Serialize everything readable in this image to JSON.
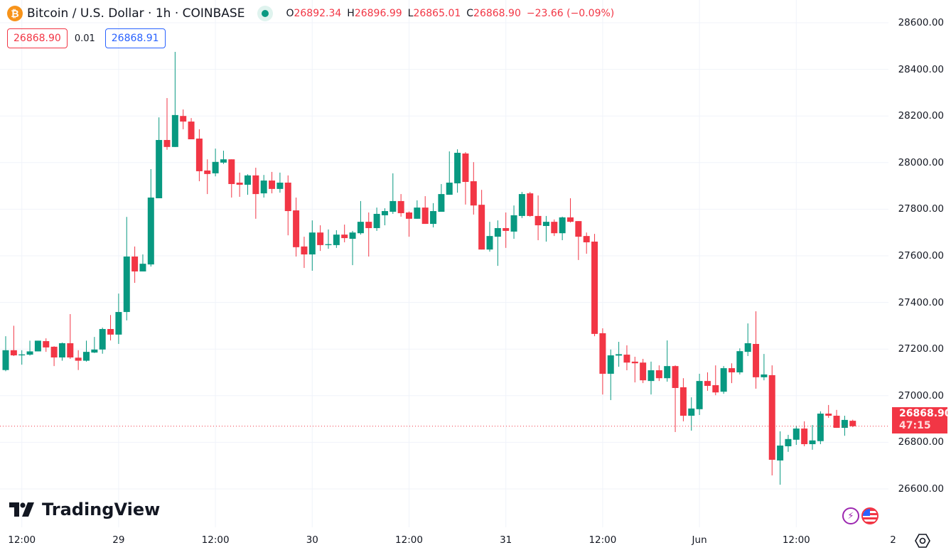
{
  "header": {
    "symbol_title": "Bitcoin / U.S. Dollar · 1h · COINBASE",
    "icon": "bitcoin-icon",
    "open_label": "O",
    "open": "26892.34",
    "high_label": "H",
    "high": "26896.99",
    "low_label": "L",
    "low": "26865.01",
    "close_label": "C",
    "close": "26868.90",
    "change": "−23.66 (−0.09%)"
  },
  "quote": {
    "sell": "26868.90",
    "spread": "0.01",
    "buy": "26868.91"
  },
  "last_price": {
    "price": "26868.90",
    "countdown": "47:15"
  },
  "branding": {
    "logo_text": "TradingView"
  },
  "colors": {
    "up": "#089981",
    "down": "#f23645",
    "grid": "#f0f3fa",
    "buy": "#2962ff"
  },
  "chart_data": {
    "type": "candlestick",
    "title": "Bitcoin / U.S. Dollar · 1h · COINBASE",
    "interval": "1h",
    "ylim": [
      26520,
      28700
    ],
    "grid": true,
    "y_ticks": [
      "28600.00",
      "28400.00",
      "28200.00",
      "28000.00",
      "27800.00",
      "27600.00",
      "27400.00",
      "27200.00",
      "27000.00",
      "26800.00",
      "26600.00"
    ],
    "x_ticks": [
      "12:00",
      "29",
      "12:00",
      "30",
      "12:00",
      "31",
      "12:00",
      "Jun",
      "12:00",
      "2"
    ],
    "ohlc_format": [
      "open",
      "high",
      "low",
      "close"
    ],
    "candles": [
      [
        27110,
        27255,
        27105,
        27195
      ],
      [
        27195,
        27300,
        27170,
        27173
      ],
      [
        27173,
        27195,
        27133,
        27177
      ],
      [
        27176,
        27236,
        27172,
        27190
      ],
      [
        27190,
        27236,
        27190,
        27236
      ],
      [
        27234,
        27246,
        27188,
        27207
      ],
      [
        27210,
        27212,
        27127,
        27164
      ],
      [
        27164,
        27228,
        27150,
        27225
      ],
      [
        27225,
        27350,
        27158,
        27164
      ],
      [
        27163,
        27195,
        27110,
        27150
      ],
      [
        27150,
        27236,
        27146,
        27188
      ],
      [
        27185,
        27252,
        27183,
        27198
      ],
      [
        27198,
        27292,
        27180,
        27286
      ],
      [
        27286,
        27346,
        27237,
        27262
      ],
      [
        27262,
        27438,
        27222,
        27359
      ],
      [
        27359,
        27767,
        27323,
        27597
      ],
      [
        27597,
        27640,
        27484,
        27533
      ],
      [
        27533,
        27606,
        27533,
        27566
      ],
      [
        27563,
        27972,
        27554,
        27850
      ],
      [
        27847,
        28194,
        27847,
        28097
      ],
      [
        28097,
        28277,
        28055,
        28067
      ],
      [
        28067,
        28475,
        28067,
        28204
      ],
      [
        28200,
        28228,
        28143,
        28176
      ],
      [
        28176,
        28191,
        28100,
        28100
      ],
      [
        28103,
        28143,
        27920,
        27963
      ],
      [
        27966,
        28014,
        27865,
        27951
      ],
      [
        27954,
        28060,
        27941,
        28003
      ],
      [
        28000,
        28051,
        27994,
        28014
      ],
      [
        28014,
        28014,
        27850,
        27908
      ],
      [
        27914,
        27957,
        27853,
        27905
      ],
      [
        27905,
        27950,
        27862,
        27945
      ],
      [
        27945,
        27978,
        27759,
        27865
      ],
      [
        27868,
        27947,
        27850,
        27923
      ],
      [
        27923,
        27960,
        27868,
        27887
      ],
      [
        27887,
        27957,
        27871,
        27914
      ],
      [
        27914,
        27945,
        27688,
        27792
      ],
      [
        27795,
        27850,
        27597,
        27637
      ],
      [
        27640,
        27682,
        27548,
        27606
      ],
      [
        27606,
        27752,
        27536,
        27700
      ],
      [
        27700,
        27731,
        27621,
        27646
      ],
      [
        27646,
        27713,
        27630,
        27650
      ],
      [
        27646,
        27710,
        27634,
        27691
      ],
      [
        27691,
        27734,
        27658,
        27676
      ],
      [
        27673,
        27707,
        27560,
        27700
      ],
      [
        27697,
        27835,
        27691,
        27746
      ],
      [
        27746,
        27786,
        27597,
        27719
      ],
      [
        27719,
        27807,
        27707,
        27780
      ],
      [
        27774,
        27804,
        27731,
        27792
      ],
      [
        27789,
        27954,
        27780,
        27835
      ],
      [
        27835,
        27865,
        27768,
        27783
      ],
      [
        27786,
        27790,
        27682,
        27759
      ],
      [
        27759,
        27838,
        27759,
        27807
      ],
      [
        27807,
        27856,
        27737,
        27737
      ],
      [
        27737,
        27826,
        27722,
        27792
      ],
      [
        27789,
        27908,
        27789,
        27865
      ],
      [
        27862,
        28048,
        27862,
        27914
      ],
      [
        27911,
        28057,
        27871,
        28042
      ],
      [
        28039,
        28045,
        27820,
        27917
      ],
      [
        27920,
        28002,
        27777,
        27816
      ],
      [
        27819,
        27883,
        27627,
        27627
      ],
      [
        27627,
        27746,
        27618,
        27685
      ],
      [
        27682,
        27752,
        27557,
        27719
      ],
      [
        27719,
        27786,
        27634,
        27707
      ],
      [
        27704,
        27816,
        27673,
        27774
      ],
      [
        27771,
        27874,
        27762,
        27865
      ],
      [
        27868,
        27874,
        27768,
        27771
      ],
      [
        27771,
        27859,
        27667,
        27731
      ],
      [
        27728,
        27771,
        27661,
        27746
      ],
      [
        27746,
        27756,
        27685,
        27697
      ],
      [
        27697,
        27768,
        27667,
        27765
      ],
      [
        27765,
        27847,
        27743,
        27746
      ],
      [
        27749,
        27749,
        27582,
        27682
      ],
      [
        27685,
        27700,
        27609,
        27658
      ],
      [
        27661,
        27694,
        27255,
        27265
      ],
      [
        27268,
        27289,
        27005,
        27094
      ],
      [
        27094,
        27198,
        26981,
        27173
      ],
      [
        27172,
        27231,
        27124,
        27178
      ],
      [
        27176,
        27216,
        27109,
        27142
      ],
      [
        27146,
        27167,
        27057,
        27139
      ],
      [
        27142,
        27158,
        27054,
        27066
      ],
      [
        27063,
        27146,
        27005,
        27109
      ],
      [
        27109,
        27130,
        27063,
        27075
      ],
      [
        27075,
        27237,
        27060,
        27127
      ],
      [
        27127,
        27130,
        26844,
        27033
      ],
      [
        27036,
        27075,
        26890,
        26914
      ],
      [
        26914,
        26993,
        26850,
        26945
      ],
      [
        26942,
        27094,
        26917,
        27063
      ],
      [
        27063,
        27100,
        27021,
        27042
      ],
      [
        27045,
        27130,
        27002,
        27014
      ],
      [
        27017,
        27127,
        27008,
        27118
      ],
      [
        27118,
        27139,
        27054,
        27100
      ],
      [
        27100,
        27203,
        27091,
        27191
      ],
      [
        27188,
        27310,
        27170,
        27225
      ],
      [
        27222,
        27362,
        27030,
        27079
      ],
      [
        27079,
        27179,
        27066,
        27091
      ],
      [
        27088,
        27130,
        26658,
        26725
      ],
      [
        26722,
        26847,
        26618,
        26786
      ],
      [
        26783,
        26832,
        26759,
        26814
      ],
      [
        26811,
        26871,
        26789,
        26859
      ],
      [
        26859,
        26890,
        26783,
        26792
      ],
      [
        26792,
        26874,
        26768,
        26808
      ],
      [
        26805,
        26933,
        26792,
        26923
      ],
      [
        26923,
        26960,
        26905,
        26914
      ],
      [
        26914,
        26939,
        26862,
        26862
      ],
      [
        26862,
        26914,
        26828,
        26896
      ],
      [
        26892.34,
        26896.99,
        26865.01,
        26868.9
      ]
    ]
  }
}
